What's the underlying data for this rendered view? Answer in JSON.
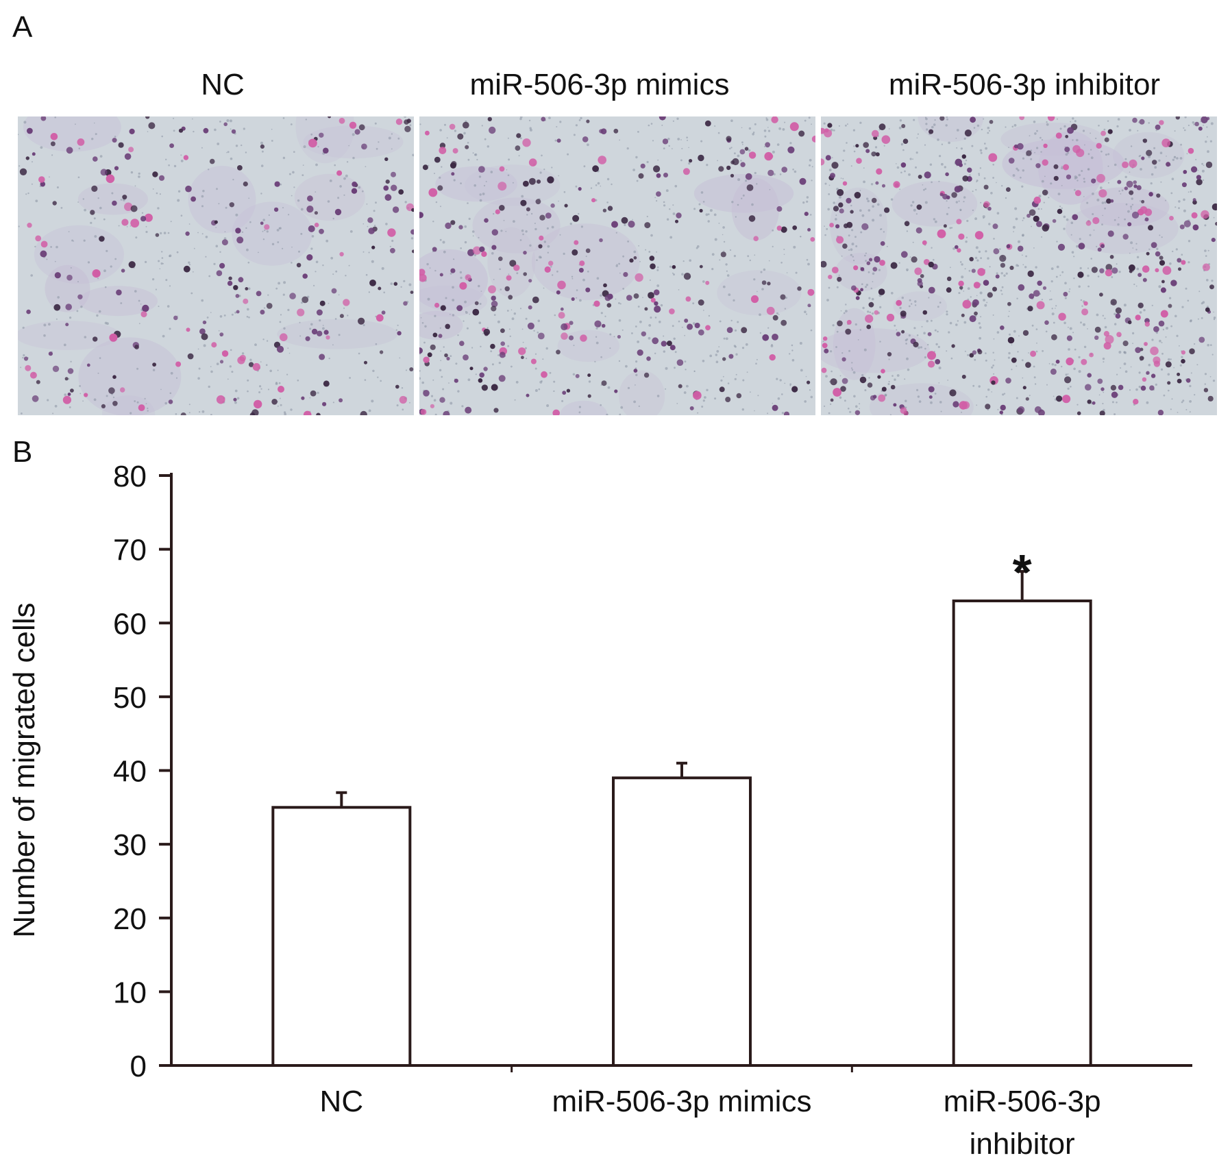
{
  "panels": {
    "a_label": "A",
    "b_label": "B"
  },
  "micrographs": [
    {
      "title": "NC"
    },
    {
      "title": "miR-506-3p mimics"
    },
    {
      "title": "miR-506-3p inhibitor"
    }
  ],
  "chart_data": {
    "type": "bar",
    "categories": [
      "NC",
      "miR-506-3p mimics",
      "miR-506-3p inhibitor"
    ],
    "category_lines": [
      [
        "NC"
      ],
      [
        "miR-506-3p mimics"
      ],
      [
        "miR-506-3p",
        "inhibitor"
      ]
    ],
    "values": [
      35,
      39,
      63
    ],
    "errors": [
      2,
      2,
      4
    ],
    "significance": [
      "",
      "",
      "*"
    ],
    "ylabel": "Number of migrated cells",
    "xlabel": "",
    "ylim": [
      0,
      80
    ],
    "yticks": [
      0,
      10,
      20,
      30,
      40,
      50,
      60,
      70,
      80
    ],
    "grid": false,
    "legend": "none",
    "bar_fill": "#ffffff",
    "bar_edge": "#2a1a1a"
  },
  "colors": {
    "micro_background": "#cfd6dc",
    "cell_dark": "#3d2a45",
    "cell_purple": "#6b3f78",
    "cell_pink": "#d15ea6"
  }
}
